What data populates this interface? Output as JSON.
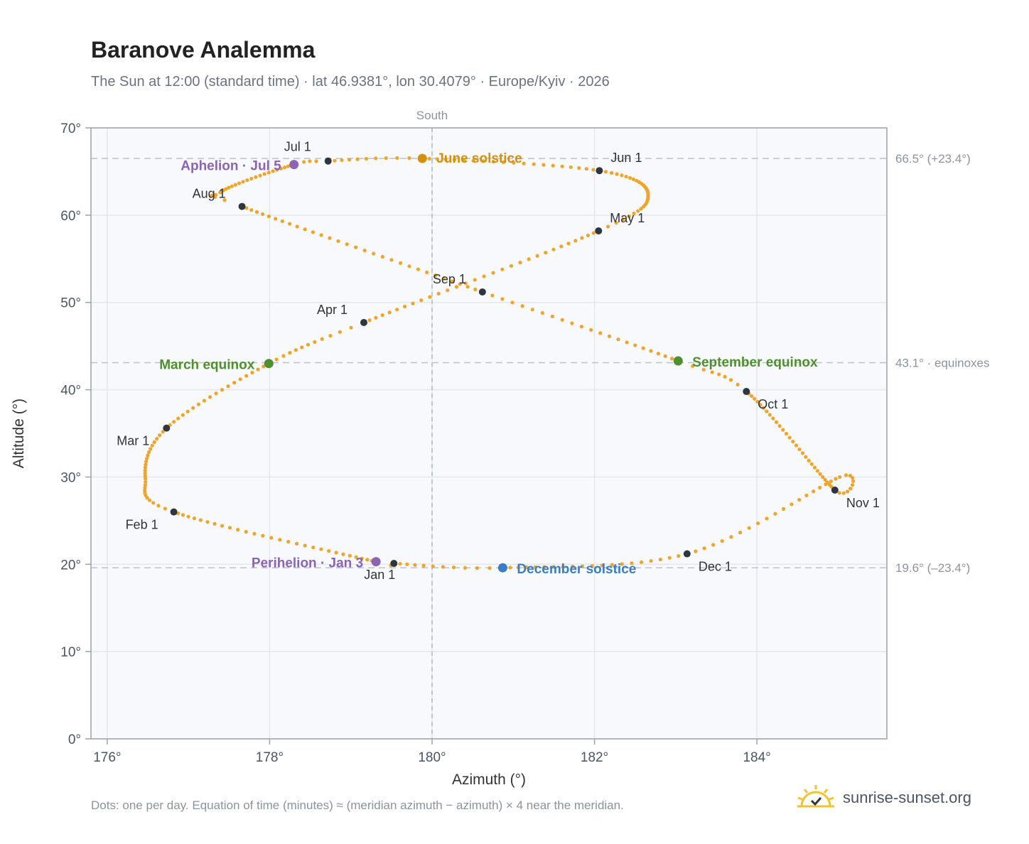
{
  "header": {
    "title": "Baranove Analemma",
    "subtitle": "The Sun at 12:00 (standard time) · lat 46.9381°, lon 30.4079° · Europe/Kyiv · 2026"
  },
  "footer": {
    "note": "Dots: one per day. Equation of time (minutes) ≈ (meridian azimuth − azimuth) × 4 near the meridian.",
    "brand": "sunrise-sunset.org",
    "brand_icon": "sun-check-icon"
  },
  "chart_data": {
    "type": "scatter",
    "title": "Baranove Analemma",
    "xlabel": "Azimuth (°)",
    "ylabel": "Altitude (°)",
    "xlim": [
      175.8,
      185.6
    ],
    "ylim": [
      0,
      70
    ],
    "x_ticks": [
      "176°",
      "178°",
      "180°",
      "182°",
      "184°"
    ],
    "x_tick_values": [
      176,
      178,
      180,
      182,
      184
    ],
    "y_ticks": [
      "0°",
      "10°",
      "20°",
      "30°",
      "40°",
      "50°",
      "60°",
      "70°"
    ],
    "y_tick_values": [
      0,
      10,
      20,
      30,
      40,
      50,
      60,
      70
    ],
    "grid": true,
    "legend": "none",
    "meridian": {
      "azimuth": 180,
      "label": "South"
    },
    "reference_lines": [
      {
        "altitude": 66.5,
        "label": "66.5° (+23.4°)"
      },
      {
        "altitude": 43.1,
        "label": "43.1° · equinoxes"
      },
      {
        "altitude": 19.6,
        "label": "19.6° (–23.4°)"
      }
    ],
    "daily_path": {
      "description_points_per_day": 1,
      "anchors": [
        {
          "day": 1,
          "az": 179.53,
          "alt": 20.1
        },
        {
          "day": 3,
          "az": 179.31,
          "alt": 20.3
        },
        {
          "day": 32,
          "az": 176.82,
          "alt": 26.0
        },
        {
          "day": 44,
          "az": 176.47,
          "alt": 29.8
        },
        {
          "day": 60,
          "az": 176.73,
          "alt": 35.6
        },
        {
          "day": 79,
          "az": 177.99,
          "alt": 43.0
        },
        {
          "day": 91,
          "az": 179.16,
          "alt": 47.7
        },
        {
          "day": 121,
          "az": 182.05,
          "alt": 58.2
        },
        {
          "day": 135,
          "az": 182.66,
          "alt": 62.3
        },
        {
          "day": 152,
          "az": 182.06,
          "alt": 65.1
        },
        {
          "day": 172,
          "az": 179.88,
          "alt": 66.5
        },
        {
          "day": 182,
          "az": 178.72,
          "alt": 66.2
        },
        {
          "day": 186,
          "az": 178.3,
          "alt": 65.8
        },
        {
          "day": 207,
          "az": 177.39,
          "alt": 62.6
        },
        {
          "day": 213,
          "az": 177.66,
          "alt": 61.0
        },
        {
          "day": 244,
          "az": 180.62,
          "alt": 51.2
        },
        {
          "day": 266,
          "az": 183.03,
          "alt": 43.3
        },
        {
          "day": 274,
          "az": 183.87,
          "alt": 39.8
        },
        {
          "day": 305,
          "az": 184.96,
          "alt": 28.5
        },
        {
          "day": 315,
          "az": 185.02,
          "alt": 30.0
        },
        {
          "day": 335,
          "az": 183.14,
          "alt": 21.2
        },
        {
          "day": 355,
          "az": 180.87,
          "alt": 19.6
        },
        {
          "day": 366,
          "az": 179.53,
          "alt": 20.1
        }
      ]
    },
    "month_markers": [
      {
        "label": "Jan 1",
        "az": 179.53,
        "alt": 20.1
      },
      {
        "label": "Feb 1",
        "az": 176.82,
        "alt": 26.0
      },
      {
        "label": "Mar 1",
        "az": 176.73,
        "alt": 35.6
      },
      {
        "label": "Apr 1",
        "az": 179.16,
        "alt": 47.7
      },
      {
        "label": "May 1",
        "az": 182.05,
        "alt": 58.2
      },
      {
        "label": "Jun 1",
        "az": 182.06,
        "alt": 65.1
      },
      {
        "label": "Jul 1",
        "az": 178.72,
        "alt": 66.2
      },
      {
        "label": "Aug 1",
        "az": 177.66,
        "alt": 61.0
      },
      {
        "label": "Sep 1",
        "az": 180.62,
        "alt": 51.2
      },
      {
        "label": "Oct 1",
        "az": 183.87,
        "alt": 39.8
      },
      {
        "label": "Nov 1",
        "az": 184.96,
        "alt": 28.5
      },
      {
        "label": "Dec 1",
        "az": 183.14,
        "alt": 21.2
      }
    ],
    "events": [
      {
        "label": "June solstice",
        "az": 179.88,
        "alt": 66.5,
        "color": "#d4900a"
      },
      {
        "label": "December solstice",
        "az": 180.87,
        "alt": 19.6,
        "color": "#3b7dc4"
      },
      {
        "label": "March equinox",
        "az": 177.99,
        "alt": 43.0,
        "color": "#4e8f2e"
      },
      {
        "label": "September equinox",
        "az": 183.03,
        "alt": 43.3,
        "color": "#4e8f2e"
      },
      {
        "label": "Aphelion · Jul 5",
        "az": 178.3,
        "alt": 65.8,
        "color": "#8c64b4"
      },
      {
        "label": "Perihelion · Jan 3",
        "az": 179.31,
        "alt": 20.3,
        "color": "#8c64b4"
      }
    ],
    "colors": {
      "path": "#f0a42a",
      "month_marker": "#2f3640",
      "plot_background": "#f7f9fc",
      "grid": "#e3e8ee",
      "frame": "#9aa3ae",
      "reference_line": "#bcc3cb",
      "meridian_line": "#a9b9be"
    }
  }
}
